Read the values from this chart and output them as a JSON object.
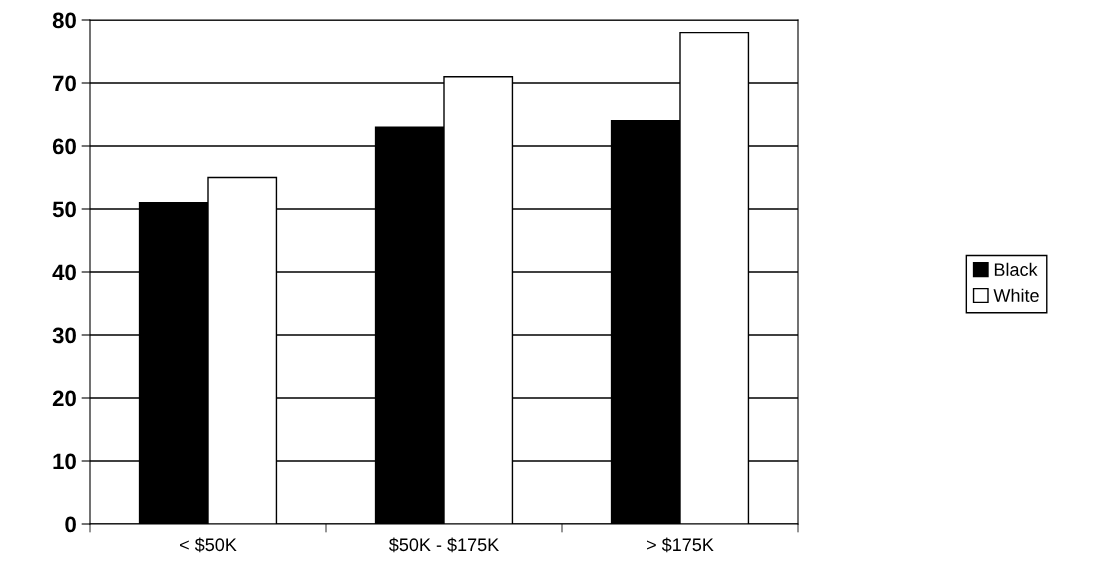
{
  "chart_data": {
    "type": "bar",
    "categories": [
      "< $50K",
      "$50K - $175K",
      "> $175K"
    ],
    "series": [
      {
        "name": "Black",
        "color": "#000000",
        "values": [
          51,
          63,
          64
        ]
      },
      {
        "name": "White",
        "color": "#ffffff",
        "values": [
          55,
          71,
          78
        ]
      }
    ],
    "ylim": [
      0,
      80
    ],
    "yticks": [
      0,
      10,
      20,
      30,
      40,
      50,
      60,
      70,
      80
    ],
    "grid": "y",
    "legend": "right"
  }
}
